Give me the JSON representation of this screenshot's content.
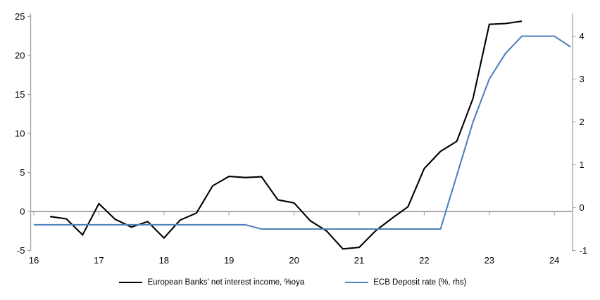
{
  "chart_data": {
    "type": "line",
    "title": "",
    "x_axis": {
      "ticks": [
        16,
        17,
        18,
        19,
        20,
        21,
        22,
        23,
        24
      ],
      "range": [
        16,
        24.35
      ]
    },
    "left_axis": {
      "ticks": [
        25,
        20,
        15,
        10,
        5,
        0,
        -5
      ],
      "range": [
        -5,
        25
      ]
    },
    "right_axis": {
      "ticks": [
        4,
        3,
        2,
        1,
        0,
        -1
      ],
      "range": [
        -1,
        4.5
      ]
    },
    "grid": "zero-line-only",
    "legend_position": "bottom-center",
    "axis_color": "#A6A6A6",
    "zero_line_color": "#9D9D9D",
    "text_color": "#000000",
    "series": [
      {
        "id": "nii",
        "name": "European Banks' net interest income, %oya",
        "axis": "left",
        "color": "#000000",
        "x": [
          16.25,
          16.5,
          16.75,
          17.0,
          17.25,
          17.5,
          17.75,
          18.0,
          18.25,
          18.5,
          18.75,
          19.0,
          19.25,
          19.5,
          19.75,
          20.0,
          20.25,
          20.5,
          20.75,
          21.0,
          21.25,
          21.5,
          21.75,
          22.0,
          22.25,
          22.5,
          22.75,
          23.0,
          23.25,
          23.5
        ],
        "y": [
          -0.65,
          -0.95,
          -3.0,
          1.0,
          -1.0,
          -2.0,
          -1.3,
          -3.4,
          -1.1,
          -0.2,
          3.3,
          4.5,
          4.35,
          4.45,
          1.5,
          1.1,
          -1.2,
          -2.5,
          -4.8,
          -4.6,
          -2.5,
          -0.9,
          0.6,
          5.5,
          7.7,
          9.0,
          14.5,
          24.0,
          24.1,
          24.4
        ]
      },
      {
        "id": "ecb",
        "name": "ECB Deposit rate (%, rhs)",
        "axis": "right",
        "color": "#4F81BD",
        "x": [
          16.0,
          19.25,
          19.5,
          22.25,
          22.5,
          22.75,
          23.0,
          23.25,
          23.5,
          24.0,
          24.25
        ],
        "y": [
          -0.4,
          -0.4,
          -0.5,
          -0.5,
          0.75,
          2.0,
          3.0,
          3.6,
          4.0,
          4.0,
          3.75
        ]
      }
    ]
  }
}
